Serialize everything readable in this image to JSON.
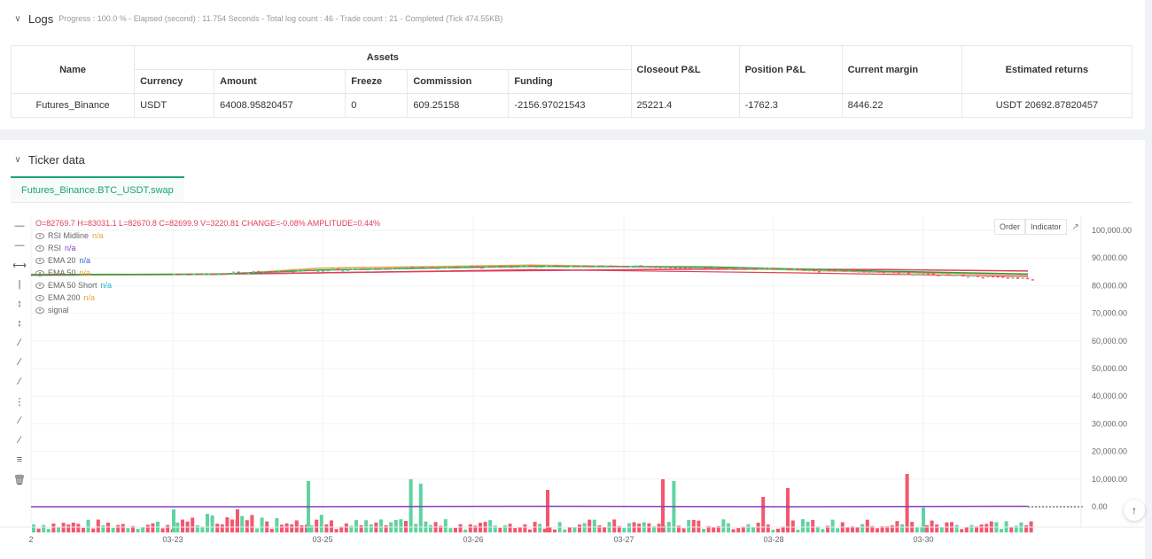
{
  "logs": {
    "title": "Logs",
    "meta": "Progress : 100.0 % - Elapsed (second) : 11.754  Seconds - Total log count : 46 - Trade count : 21 - Completed (Tick 474.55KB)"
  },
  "assets_table": {
    "headers": {
      "name": "Name",
      "assets": "Assets",
      "currency": "Currency",
      "amount": "Amount",
      "freeze": "Freeze",
      "commission": "Commission",
      "funding": "Funding",
      "closeout_pl": "Closeout P&L",
      "position_pl": "Position P&L",
      "current_margin": "Current margin",
      "estimated_returns": "Estimated returns"
    },
    "row": {
      "name": "Futures_Binance",
      "currency": "USDT",
      "amount": "64008.95820457",
      "freeze": "0",
      "commission": "609.25158",
      "funding": "-2156.97021543",
      "closeout_pl": "25221.4",
      "position_pl": "-1762.3",
      "current_margin": "8446.22",
      "estimated_returns": "USDT 20692.87820457"
    }
  },
  "ticker": {
    "title": "Ticker data",
    "tab": "Futures_Binance.BTC_USDT.swap"
  },
  "chart": {
    "ohlc": "O=82769.7 H=83031.1 L=82670.8 C=82699.9 V=3220.81 CHANGE=-0.08% AMPLITUDE=0.44%",
    "legend": [
      {
        "name": "RSI Midline",
        "value": "n/a",
        "color": "#e8a23a"
      },
      {
        "name": "RSI",
        "value": "n/a",
        "color": "#8b3fc2"
      },
      {
        "name": "EMA 20",
        "value": "n/a",
        "color": "#2f6bd6"
      },
      {
        "name": "EMA 50",
        "value": "n/a",
        "color": "#e8a23a"
      },
      {
        "name": "EMA 50 Short",
        "value": "n/a",
        "color": "#1ab2c4"
      },
      {
        "name": "EMA 200",
        "value": "n/a",
        "color": "#e8a23a"
      },
      {
        "name": "signal",
        "value": "",
        "color": "#666666"
      }
    ],
    "buttons": {
      "order": "Order",
      "indicator": "Indicator"
    },
    "y_ticks": [
      "100,000.00",
      "90,000.00",
      "80,000.00",
      "70,000.00",
      "60,000.00",
      "50,000.00",
      "40,000.00",
      "30,000.00",
      "20,000.00",
      "10,000.00",
      "0.00"
    ],
    "x_ticks": [
      "2",
      "03-23",
      "03-25",
      "03-26",
      "03-27",
      "03-28",
      "03-30"
    ],
    "colors": {
      "up": "#5fd3a2",
      "down": "#f4566f",
      "ema_orange": "#e8a23a",
      "ema_green": "#2e9e4a",
      "ema_red": "#e0405a",
      "rsi": "#8b3fc2"
    }
  }
}
